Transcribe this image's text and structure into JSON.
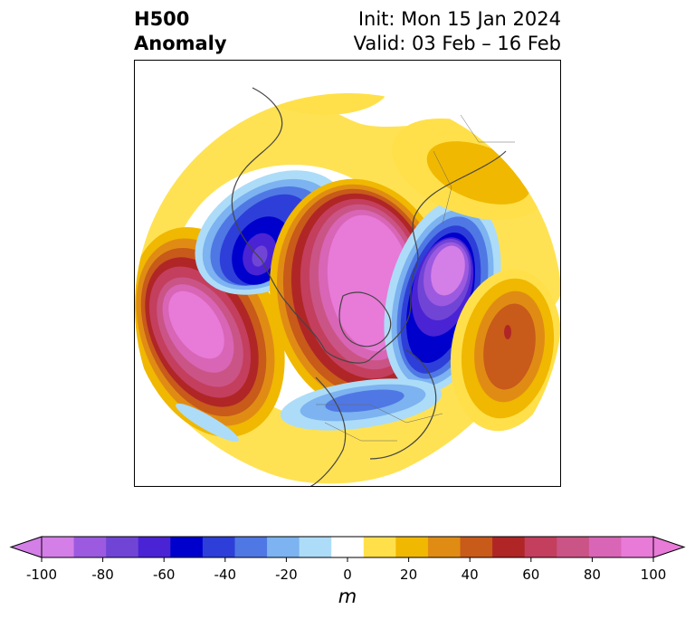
{
  "header": {
    "title_line1": "H500",
    "title_line2": "Anomaly",
    "init_label": "Init: Mon 15 Jan 2024",
    "valid_label": "Valid: 03 Feb – 16 Feb"
  },
  "colorbar": {
    "unit": "m",
    "tick_values": [
      -100,
      -80,
      -60,
      -40,
      -20,
      0,
      20,
      40,
      60,
      80,
      100
    ],
    "tick_labels": [
      "-100",
      "-80",
      "-60",
      "-40",
      "-20",
      "0",
      "20",
      "40",
      "60",
      "80",
      "100"
    ],
    "level_min": -100,
    "level_step": 10,
    "colors": [
      "#d47ee8",
      "#9c5ae0",
      "#7045d6",
      "#4a23d4",
      "#0000cc",
      "#2d3fd8",
      "#4f78e4",
      "#7cb3f0",
      "#addcf8",
      "#ffffff",
      "#ffe04a",
      "#f0b800",
      "#e08c14",
      "#c85a1a",
      "#b02626",
      "#c43e5e",
      "#ca5485",
      "#d865b5",
      "#e87ad8"
    ],
    "extend_min_color": "#d47ee8",
    "extend_max_color": "#e87ad8"
  },
  "map": {
    "projection": "north-polar-stereographic",
    "field": "500 hPa geopotential height anomaly",
    "features": [
      {
        "name": "positive-anomaly-center-polar",
        "value": 100
      },
      {
        "name": "positive-anomaly-center-alaska-pacific",
        "value": 100
      },
      {
        "name": "positive-anomaly-center-atlantic",
        "value": 60
      },
      {
        "name": "negative-anomaly-center-siberia",
        "value": -100
      },
      {
        "name": "negative-anomaly-center-europe",
        "value": -100
      },
      {
        "name": "negative-anomaly-center-us",
        "value": -40
      },
      {
        "name": "positive-anomaly-center-arctic-siberia",
        "value": 20
      },
      {
        "name": "positive-anomaly-center-central-asia",
        "value": 30
      }
    ]
  }
}
